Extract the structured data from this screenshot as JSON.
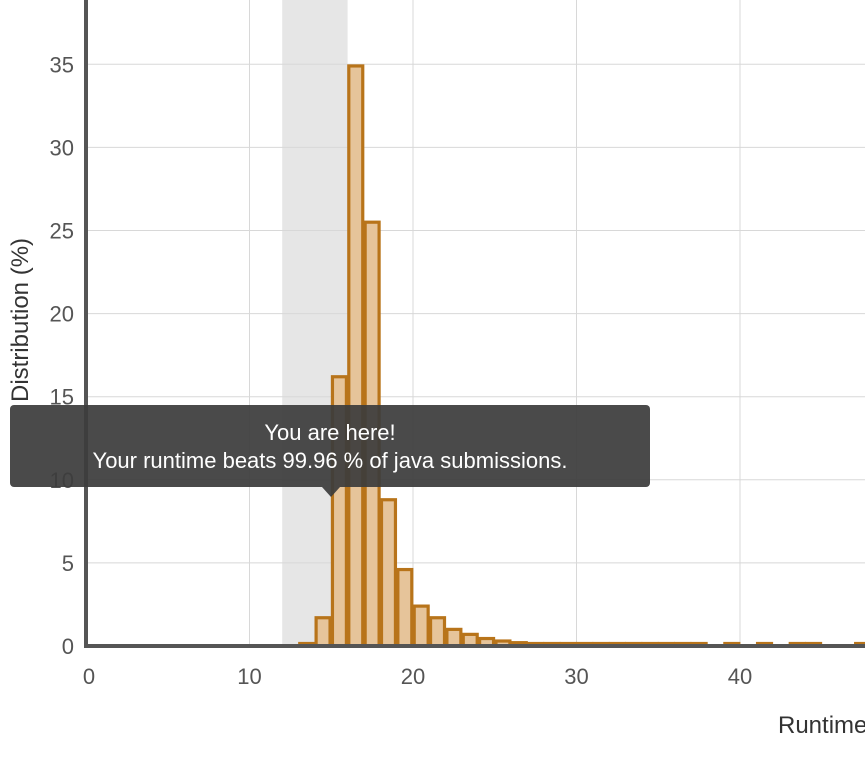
{
  "chart_data": {
    "type": "bar",
    "xlabel": "Runtime",
    "ylabel": "Distribution (%)",
    "xlim": [
      0,
      48
    ],
    "ylim": [
      0,
      38
    ],
    "x_ticks": [
      0,
      10,
      20,
      30,
      40
    ],
    "y_ticks": [
      0,
      5,
      10,
      15,
      20,
      25,
      30,
      35
    ],
    "grid": true,
    "bin_width": 1,
    "highlight_range": [
      12,
      16
    ],
    "colors": {
      "bar_fill": "#e6c49a",
      "bar_stroke": "#b8741a",
      "highlight": "#e6e6e6",
      "grid": "#d8d8d8",
      "axis": "#555555"
    },
    "bins": [
      {
        "x": 13,
        "value": 0.1
      },
      {
        "x": 14,
        "value": 1.7
      },
      {
        "x": 15,
        "value": 16.2
      },
      {
        "x": 16,
        "value": 34.9
      },
      {
        "x": 17,
        "value": 25.5
      },
      {
        "x": 18,
        "value": 8.8
      },
      {
        "x": 19,
        "value": 4.6
      },
      {
        "x": 20,
        "value": 2.4
      },
      {
        "x": 21,
        "value": 1.7
      },
      {
        "x": 22,
        "value": 1.0
      },
      {
        "x": 23,
        "value": 0.7
      },
      {
        "x": 24,
        "value": 0.45
      },
      {
        "x": 25,
        "value": 0.3
      },
      {
        "x": 26,
        "value": 0.2
      },
      {
        "x": 27,
        "value": 0.15
      },
      {
        "x": 28,
        "value": 0.12
      },
      {
        "x": 29,
        "value": 0.1
      },
      {
        "x": 30,
        "value": 0.1
      },
      {
        "x": 31,
        "value": 0.1
      },
      {
        "x": 32,
        "value": 0.1
      },
      {
        "x": 33,
        "value": 0.1
      },
      {
        "x": 34,
        "value": 0.1
      },
      {
        "x": 35,
        "value": 0.1
      },
      {
        "x": 36,
        "value": 0.1
      },
      {
        "x": 37,
        "value": 0.1
      },
      {
        "x": 39,
        "value": 0.1
      },
      {
        "x": 41,
        "value": 0.1
      },
      {
        "x": 43,
        "value": 0.1
      },
      {
        "x": 44,
        "value": 0.1
      },
      {
        "x": 47,
        "value": 0.1
      }
    ]
  },
  "tooltip": {
    "line1": "You are here!",
    "line2": "Your runtime beats 99.96 % of java submissions."
  }
}
